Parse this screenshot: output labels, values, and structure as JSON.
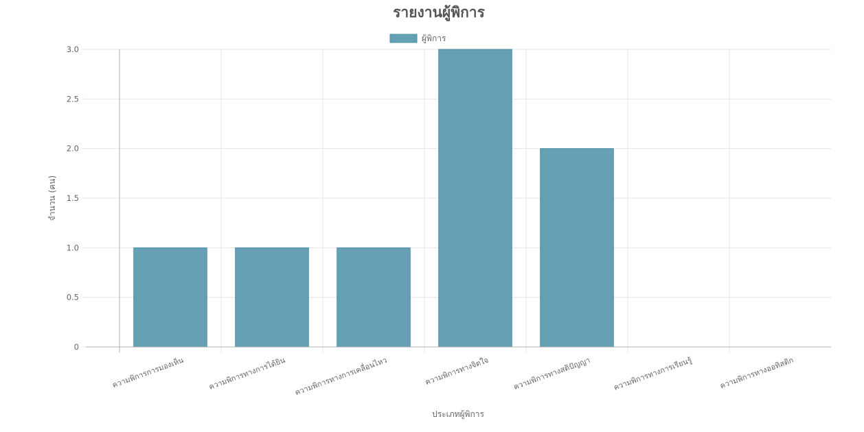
{
  "chart_data": {
    "type": "bar",
    "title": "รายงานผู้พิการ",
    "xlabel": "ประเภทผู้พิการ",
    "ylabel": "จำนวน (คน)",
    "categories": [
      "ความพิการการมองเห็น",
      "ความพิการทางการได้ยิน",
      "ความพิการทางการเคลื่อนไหว",
      "ความพิการทางจิตใจ",
      "ความพิการทางสติปัญญา",
      "ความพิการทางการเรียนรู้",
      "ความพิการทางออทิสติก"
    ],
    "series": [
      {
        "name": "ผู้พิการ",
        "values": [
          1,
          1,
          1,
          3,
          2,
          0,
          0
        ],
        "color": "#4a8fa7"
      }
    ],
    "ylim": [
      0,
      3
    ],
    "yticks": [
      "0",
      "0.5",
      "1.0",
      "1.5",
      "2.0",
      "2.5",
      "3.0"
    ],
    "grid": true,
    "legend_position": "top-center"
  }
}
